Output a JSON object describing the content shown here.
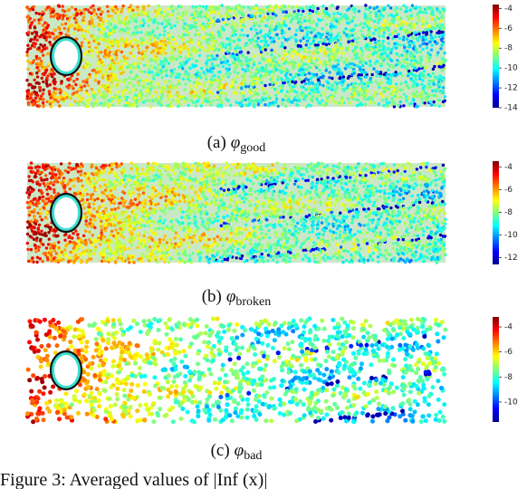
{
  "panels": [
    {
      "label": "(a)",
      "symbol": "φ",
      "subscript": "good",
      "clim": [
        -3.6,
        -14
      ],
      "ticks": [
        -4,
        -6,
        -8,
        -10,
        -12,
        -14
      ]
    },
    {
      "label": "(b)",
      "symbol": "φ",
      "subscript": "broken",
      "clim": [
        -3.5,
        -12.6
      ],
      "ticks": [
        -4,
        -6,
        -8,
        -10,
        -12
      ]
    },
    {
      "label": "(c)",
      "symbol": "φ",
      "subscript": "bad",
      "clim": [
        -3.2,
        -11.6
      ],
      "ticks": [
        -4,
        -6,
        -8,
        -10
      ]
    }
  ],
  "figure_caption": "Figure 3: Averaged values of |Inf (x)|"
}
